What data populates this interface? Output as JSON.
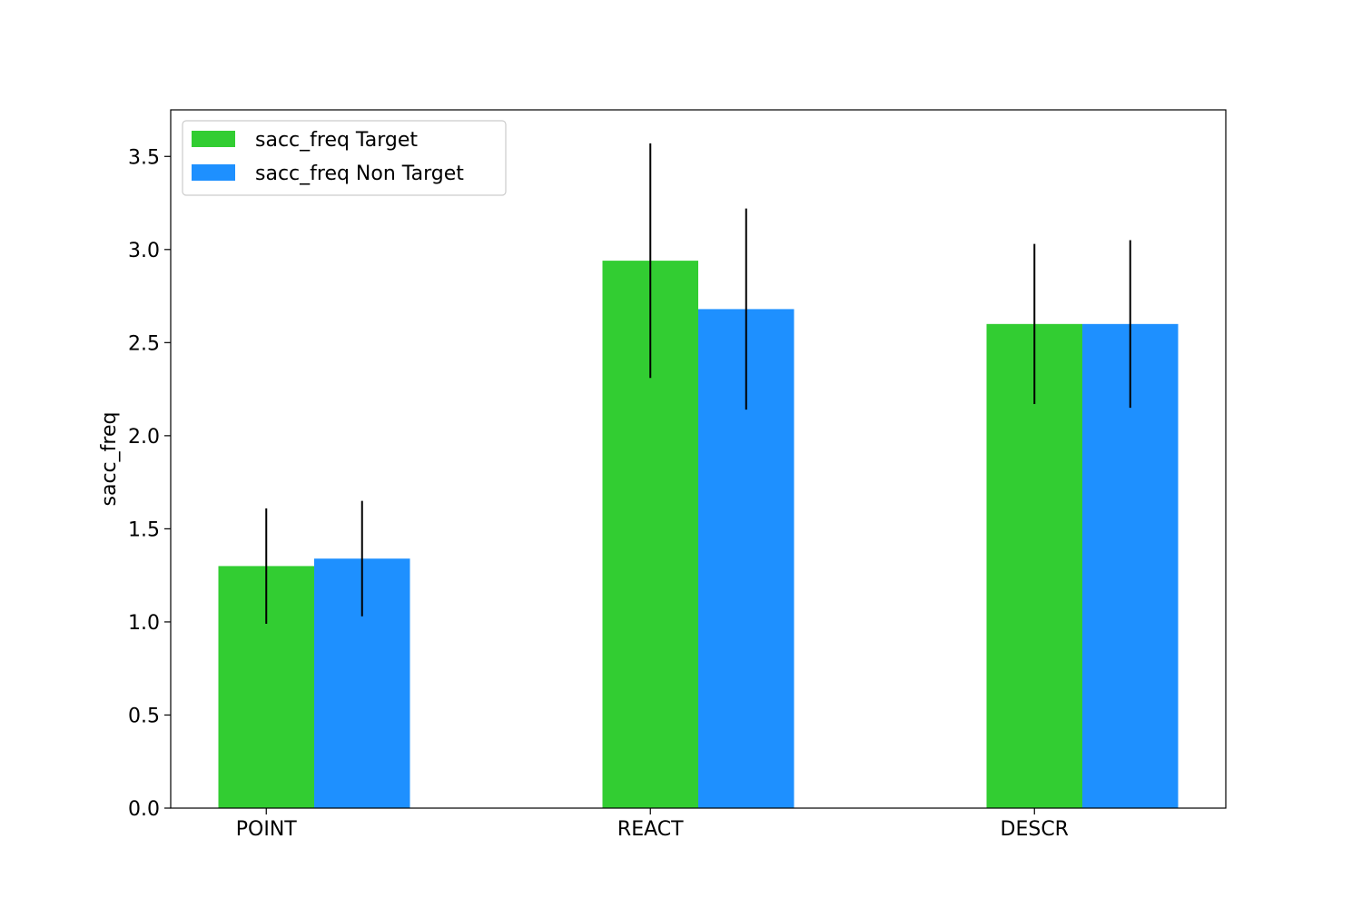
{
  "chart_data": {
    "type": "bar",
    "title": "",
    "xlabel": "",
    "ylabel": "sacc_freq",
    "categories": [
      "POINT",
      "REACT",
      "DESCR"
    ],
    "series": [
      {
        "name": "sacc_freq Target",
        "color": "#32cd32",
        "values": [
          1.3,
          2.94,
          2.6
        ],
        "error": [
          0.31,
          0.63,
          0.43
        ]
      },
      {
        "name": "sacc_freq Non Target",
        "color": "#1e90ff",
        "values": [
          1.34,
          2.68,
          2.6
        ],
        "error": [
          0.31,
          0.54,
          0.45
        ]
      }
    ],
    "ylim": [
      0,
      3.75
    ],
    "yticks": [
      "0.0",
      "0.5",
      "1.0",
      "1.5",
      "2.0",
      "2.5",
      "3.0",
      "3.5"
    ],
    "grid": false,
    "legend_position": "top-left"
  }
}
